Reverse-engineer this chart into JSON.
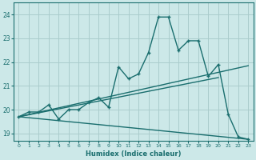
{
  "xlabel": "Humidex (Indice chaleur)",
  "bg_color": "#cce8e8",
  "grid_color": "#aacccc",
  "line_color": "#1a6e6e",
  "xlim": [
    -0.5,
    23.5
  ],
  "ylim": [
    18.7,
    24.5
  ],
  "yticks": [
    19,
    20,
    21,
    22,
    23,
    24
  ],
  "xticks": [
    0,
    1,
    2,
    3,
    4,
    5,
    6,
    7,
    8,
    9,
    10,
    11,
    12,
    13,
    14,
    15,
    16,
    17,
    18,
    19,
    20,
    21,
    22,
    23
  ],
  "series1_x": [
    0,
    1,
    2,
    3,
    4,
    5,
    6,
    7,
    8,
    9,
    10,
    11,
    12,
    13,
    14,
    15,
    16,
    17,
    18,
    19,
    20,
    21,
    22,
    23
  ],
  "series1_y": [
    19.7,
    19.9,
    19.9,
    20.2,
    19.6,
    20.0,
    20.0,
    20.3,
    20.5,
    20.1,
    21.8,
    21.3,
    21.5,
    22.4,
    23.9,
    23.9,
    22.5,
    22.9,
    22.9,
    21.4,
    21.9,
    19.8,
    18.85,
    18.75
  ],
  "series2_x": [
    0,
    23
  ],
  "series2_y": [
    19.7,
    21.85
  ],
  "series3_x": [
    0,
    20
  ],
  "series3_y": [
    19.7,
    21.35
  ],
  "series4_x": [
    0,
    23
  ],
  "series4_y": [
    19.7,
    18.75
  ],
  "marker_size": 3.5,
  "linewidth": 1.0
}
